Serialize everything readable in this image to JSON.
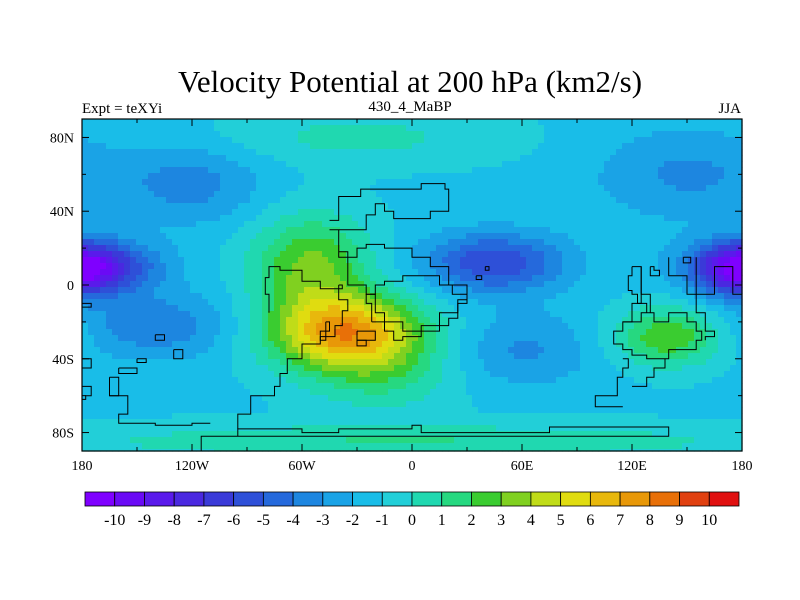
{
  "chart_data": {
    "type": "heatmap",
    "title": "Velocity Potential at 200 hPa (km2/s)",
    "subtitle_left": "Expt = teXYi",
    "subtitle_center": "430_4_MaBP",
    "subtitle_right": "JJA",
    "x_tick_labels": [
      "180",
      "120W",
      "60W",
      "0",
      "60E",
      "120E",
      "180"
    ],
    "x_ticks": [
      -180,
      -120,
      -60,
      0,
      60,
      120,
      180
    ],
    "y_tick_labels": [
      "80N",
      "40N",
      "0",
      "40S",
      "80S"
    ],
    "y_ticks": [
      80,
      40,
      0,
      -40,
      -80
    ],
    "xlim": [
      -180,
      180
    ],
    "ylim": [
      -90,
      90
    ],
    "colorbar_labels": [
      "-10",
      "-9",
      "-8",
      "-7",
      "-6",
      "-5",
      "-4",
      "-3",
      "-2",
      "-1",
      "0",
      "1",
      "2",
      "3",
      "4",
      "5",
      "6",
      "7",
      "8",
      "9",
      "10"
    ],
    "colorbar_range": [
      -10,
      10
    ],
    "field_features": [
      {
        "kind": "max",
        "lon": -35,
        "lat": -25,
        "value": 8.5
      },
      {
        "kind": "max",
        "lon": 140,
        "lat": -28,
        "value": 3.5
      },
      {
        "kind": "min",
        "lon": -175,
        "lat": 10,
        "value": -7
      },
      {
        "kind": "min",
        "lon": 178,
        "lat": 8,
        "value": -6.5
      },
      {
        "kind": "min",
        "lon": 45,
        "lat": 12,
        "value": -5.5
      }
    ],
    "colors": [
      "#7f00ff",
      "#6a0af5",
      "#5a1aeb",
      "#4a28e0",
      "#3a3ad8",
      "#2e50d8",
      "#2569dc",
      "#1d86e0",
      "#1aa3e6",
      "#19bde8",
      "#22cfd8",
      "#20d8b0",
      "#26d880",
      "#3acc30",
      "#80d020",
      "#c0dc18",
      "#e0dc10",
      "#e8b80c",
      "#e89808",
      "#e87008",
      "#e04010",
      "#e01010"
    ]
  }
}
